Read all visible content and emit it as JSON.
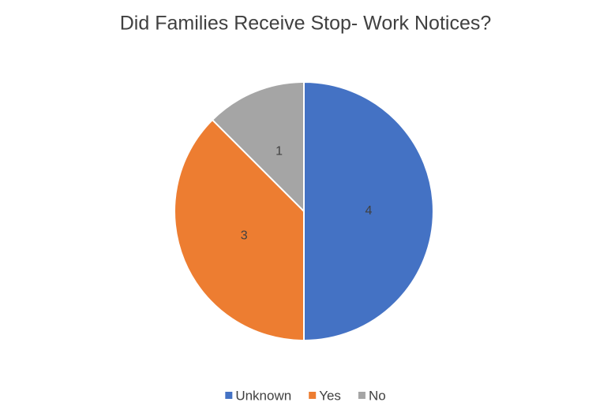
{
  "chart_data": {
    "type": "pie",
    "title": "Did Families Receive Stop- Work Notices?",
    "categories": [
      "Unknown",
      "Yes",
      "No"
    ],
    "values": [
      4,
      3,
      1
    ],
    "colors": [
      "#4472c4",
      "#ed7d31",
      "#a5a5a5"
    ],
    "legend": "bottom"
  }
}
